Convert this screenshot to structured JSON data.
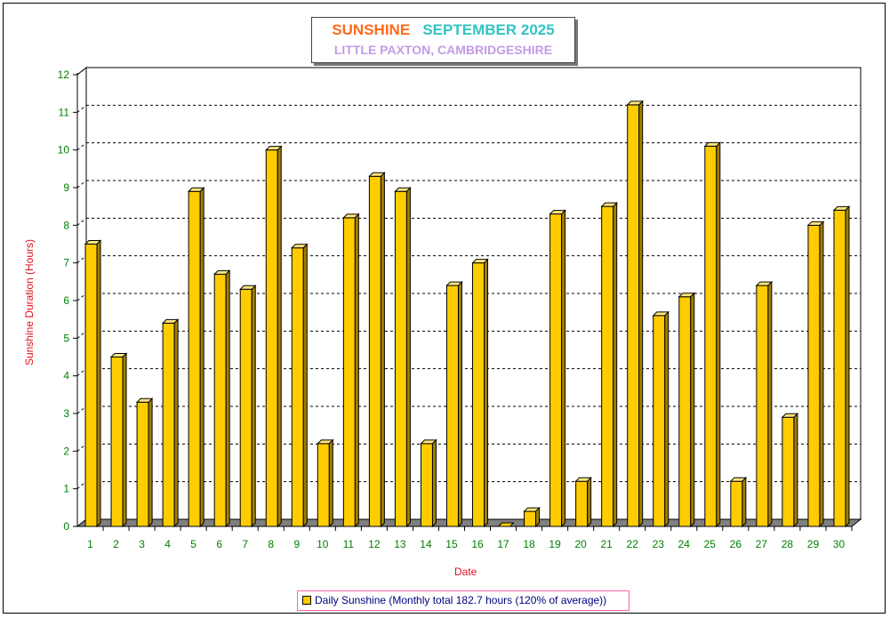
{
  "chart_data": {
    "type": "bar",
    "title_part1": "SUNSHINE",
    "title_part2": "SEPTEMBER 2025",
    "subtitle": "LITTLE PAXTON, CAMBRIDGESHIRE",
    "xlabel": "Date",
    "ylabel": "Sunshine Duration (Hours)",
    "ylim": [
      0,
      12
    ],
    "yticks": [
      0,
      1,
      2,
      3,
      4,
      5,
      6,
      7,
      8,
      9,
      10,
      11,
      12
    ],
    "grid": true,
    "legend_position": "bottom",
    "categories": [
      "1",
      "2",
      "3",
      "4",
      "5",
      "6",
      "7",
      "8",
      "9",
      "10",
      "11",
      "12",
      "13",
      "14",
      "15",
      "16",
      "17",
      "18",
      "19",
      "20",
      "21",
      "22",
      "23",
      "24",
      "25",
      "26",
      "27",
      "28",
      "29",
      "30"
    ],
    "series": [
      {
        "name": "Daily Sunshine (Monthly total 182.7 hours (120% of average))",
        "color": "#ffcc00",
        "values": [
          7.5,
          4.5,
          3.3,
          5.4,
          8.9,
          6.7,
          6.3,
          10.0,
          7.4,
          2.2,
          8.2,
          9.3,
          8.9,
          2.2,
          6.4,
          7.0,
          0.0,
          0.4,
          8.3,
          1.2,
          8.5,
          11.2,
          5.6,
          6.1,
          10.1,
          1.2,
          6.4,
          2.9,
          8.0,
          8.4
        ]
      }
    ],
    "colors": {
      "bar": "#ffcc00",
      "tick_labels": "#008000",
      "axis_titles": "#e01020",
      "title_part1": "#ff6a1a",
      "title_part2": "#33c4c4",
      "subtitle": "#c39be6",
      "legend_text": "#000080"
    }
  }
}
